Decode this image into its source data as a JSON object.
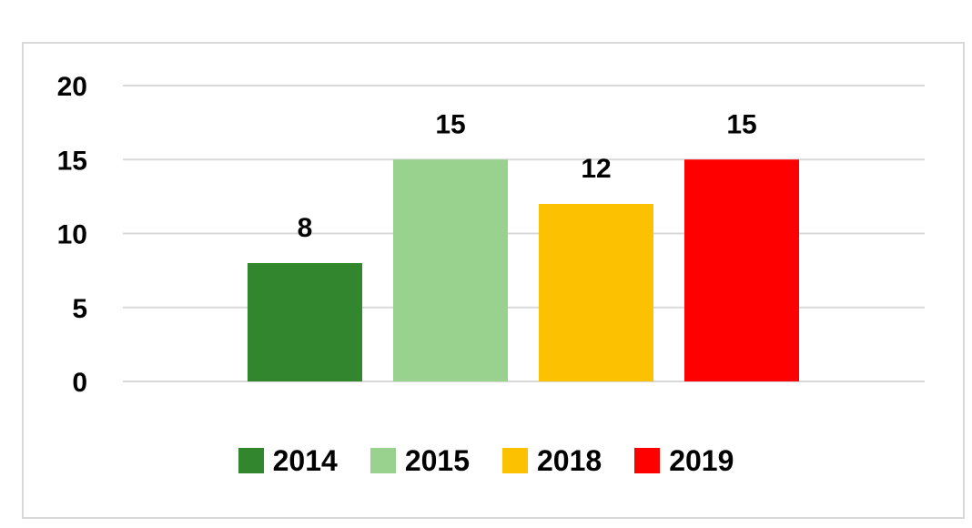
{
  "chart_data": {
    "type": "bar",
    "categories": [
      "2014",
      "2015",
      "2018",
      "2019"
    ],
    "values": [
      8,
      15,
      12,
      15
    ],
    "colors": [
      "#31862e",
      "#99d18f",
      "#fcc100",
      "#ff0000"
    ],
    "data_labels": [
      "8",
      "15",
      "12",
      "15"
    ],
    "yticks": [
      "0",
      "5",
      "10",
      "15",
      "20"
    ],
    "ylim": [
      0,
      20
    ],
    "grid": true,
    "legend_position": "bottom",
    "title": "",
    "xlabel": "",
    "ylabel": ""
  }
}
